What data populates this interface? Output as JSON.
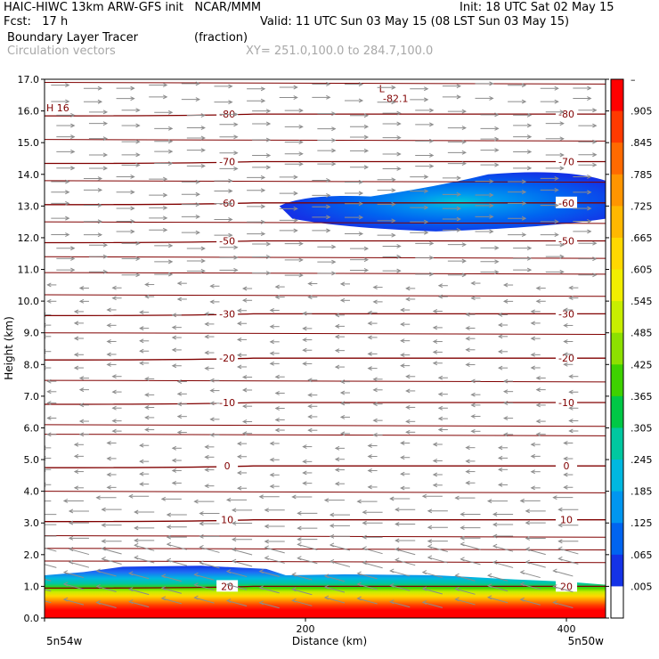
{
  "header": {
    "line1_left": "HAIC-HIWC 13km ARW-GFS init   NCAR/MMM",
    "line1_right": "Init: 18 UTC Sat 02 May 15",
    "line2_left": "Fcst:   17 h",
    "line2_right": "Valid: 11 UTC Sun 03 May 15 (08 LST Sun 03 May 15)",
    "field_name": "Boundary Layer Tracer",
    "field_units": "(fraction)",
    "vectors_label": "Circulation vectors",
    "xy_label": "XY= 251.0,100.0 to 284.7,100.0"
  },
  "chart_data": {
    "type": "heatmap",
    "title": "Boundary Layer Tracer",
    "units": "(fraction)",
    "xlabel": "Distance (km)",
    "ylabel": "Height (km)",
    "xlim": [
      0,
      430
    ],
    "ylim": [
      0,
      17
    ],
    "x_ticks": [
      0,
      200,
      400
    ],
    "x_tick_labels": [
      "",
      "200",
      "400"
    ],
    "x_end_labels": [
      "5n54w",
      "5n50w"
    ],
    "y_ticks": [
      0,
      1,
      2,
      3,
      4,
      5,
      6,
      7,
      8,
      9,
      10,
      11,
      12,
      13,
      14,
      15,
      16,
      17
    ],
    "y_tick_labels": [
      "0.0",
      "1.0",
      "2.0",
      "3.0",
      "4.0",
      "5.0",
      "6.0",
      "7.0",
      "8.0",
      "9.0",
      "10.0",
      "11.0",
      "12.0",
      "13.0",
      "14.0",
      "15.0",
      "16.0",
      "17.0"
    ],
    "colorbar": {
      "labels": [
        "–",
        ".905",
        ".845",
        ".785",
        ".725",
        ".665",
        ".605",
        ".545",
        ".485",
        ".425",
        ".365",
        ".305",
        ".245",
        ".185",
        ".125",
        ".065",
        ".005"
      ],
      "colors": [
        "#ff0000",
        "#ff3a00",
        "#ff6a00",
        "#ff9500",
        "#ffb800",
        "#ffd800",
        "#f2ee00",
        "#c8ee00",
        "#8de000",
        "#3ed200",
        "#00c846",
        "#00c8a0",
        "#00b8e0",
        "#0096f0",
        "#0064f0",
        "#1432e6",
        "#ffffff"
      ]
    },
    "temperature_contours": [
      {
        "label": "-80",
        "height": 15.9
      },
      {
        "label": "-70",
        "height": 14.4
      },
      {
        "label": "-60",
        "height": 13.1
      },
      {
        "label": "-50",
        "height": 11.9
      },
      {
        "label": "-30",
        "height": 9.6
      },
      {
        "label": "-20",
        "height": 8.2
      },
      {
        "label": "-10",
        "height": 6.8
      },
      {
        "label": "0",
        "height": 4.8
      },
      {
        "label": "10",
        "height": 3.1
      },
      {
        "label": "20",
        "height": 1.0
      }
    ],
    "extrema": [
      {
        "label": "H 16",
        "x": 0,
        "height": 16.1
      },
      {
        "label": "L",
        "x": 255,
        "height": 16.7
      },
      {
        "label": "-82.1",
        "x": 258,
        "height": 16.4
      }
    ],
    "tracer_features": [
      {
        "name": "boundary-layer",
        "base_km": 0,
        "top_km": 1.6,
        "peak": 1.0
      },
      {
        "name": "upper-plume",
        "x_start": 180,
        "x_end": 430,
        "center_km": 13.0,
        "peak": 0.12
      }
    ]
  }
}
